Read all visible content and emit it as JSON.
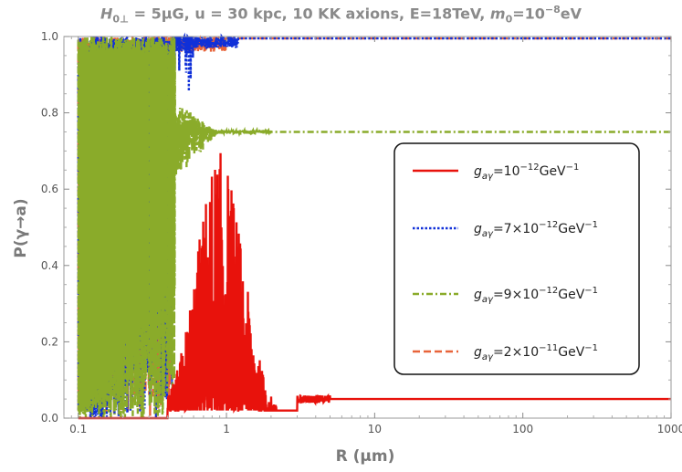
{
  "chart_data": {
    "type": "line",
    "title": {
      "H_symbol": "H",
      "H_sub": "0⊥",
      "H_value": " = 5μG, u = 30 kpc, 10 KK axions, E=18TeV, ",
      "m_symbol": "m",
      "m_sub": "0",
      "m_value": "=10",
      "m_exp": "−8",
      "m_unit": "eV"
    },
    "xlabel": "R (μm)",
    "ylabel": "P(γ→a)",
    "xscale": "log",
    "xlim": [
      0.08,
      1000
    ],
    "ylim": [
      0,
      1.0
    ],
    "x_ticks": [
      {
        "value": 0.1,
        "label": "0.1"
      },
      {
        "value": 1,
        "label": "1"
      },
      {
        "value": 10,
        "label": "10"
      },
      {
        "value": 100,
        "label": "100"
      },
      {
        "value": 1000,
        "label": "1000"
      }
    ],
    "y_ticks": [
      {
        "value": 0.0,
        "label": "0.0"
      },
      {
        "value": 0.2,
        "label": "0.2"
      },
      {
        "value": 0.4,
        "label": "0.4"
      },
      {
        "value": 0.6,
        "label": "0.6"
      },
      {
        "value": 0.8,
        "label": "0.8"
      },
      {
        "value": 1.0,
        "label": "1.0"
      }
    ],
    "grid": false,
    "legend_position": "center-right",
    "series": [
      {
        "name": "g_aγ=10^-12 GeV^-1",
        "legend_prefix": "g",
        "legend_sub": "aγ",
        "legend_mid": "=10",
        "legend_exp": "−12",
        "legend_unit": "GeV",
        "legend_unit_exp": "−1",
        "color": "#e8120c",
        "dash": "solid",
        "oscillation_range": [
          0.4,
          3.0
        ],
        "peak": 0.7,
        "peak_x": 0.9,
        "asymptote": 0.05
      },
      {
        "name": "g_aγ=7×10^-12 GeV^-1",
        "legend_prefix": "g",
        "legend_sub": "aγ",
        "legend_mid": "=7×10",
        "legend_exp": "−12",
        "legend_unit": "GeV",
        "legend_unit_exp": "−1",
        "color": "#1030d8",
        "dash": "dotted",
        "oscillation_range": [
          0.1,
          0.6
        ],
        "peak": 1.0,
        "asymptote": 0.995
      },
      {
        "name": "g_aγ=9×10^-12 GeV^-1",
        "legend_prefix": "g",
        "legend_sub": "aγ",
        "legend_mid": "=9×10",
        "legend_exp": "−12",
        "legend_unit": "GeV",
        "legend_unit_exp": "−1",
        "color": "#8aab2a",
        "dash": "dashdot",
        "oscillation_range": [
          0.1,
          0.9
        ],
        "peak": 1.0,
        "asymptote": 0.75
      },
      {
        "name": "g_aγ=2×10^-11 GeV^-1",
        "legend_prefix": "g",
        "legend_sub": "aγ",
        "legend_mid": "=2×10",
        "legend_exp": "−11",
        "legend_unit": "GeV",
        "legend_unit_exp": "−1",
        "color": "#e8643a",
        "dash": "dashed",
        "oscillation_range": [
          0.1,
          0.42
        ],
        "peak": 1.0,
        "asymptote": 0.995
      }
    ]
  }
}
